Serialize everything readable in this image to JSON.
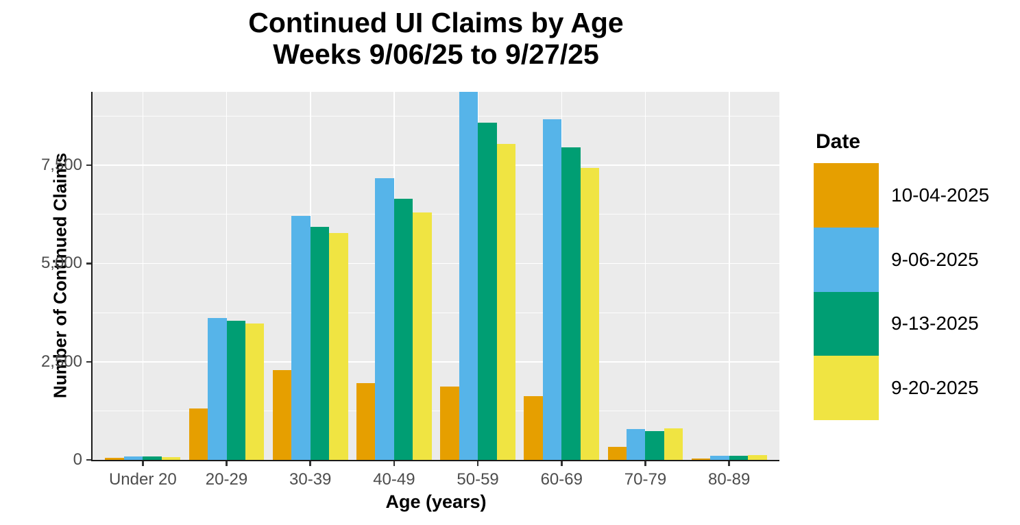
{
  "chart_data": {
    "type": "bar",
    "title": "Continued UI Claims by Age",
    "subtitle": "Weeks 9/06/25 to 9/27/25",
    "xlabel": "Age (years)",
    "ylabel": "Number of Continued Claims",
    "legend_title": "Date",
    "legend_position": "right",
    "categories": [
      "Under 20",
      "20-29",
      "30-39",
      "40-49",
      "50-59",
      "60-69",
      "70-79",
      "80-89"
    ],
    "series": [
      {
        "name": "10-04-2025",
        "color": "#E69F00",
        "values": [
          50,
          1310,
          2290,
          1950,
          1860,
          1620,
          330,
          40
        ]
      },
      {
        "name": "9-06-2025",
        "color": "#56B4E9",
        "values": [
          90,
          3620,
          6210,
          7180,
          9370,
          8670,
          780,
          110
        ]
      },
      {
        "name": "9-13-2025",
        "color": "#009E73",
        "values": [
          90,
          3540,
          5930,
          6650,
          8580,
          7950,
          730,
          110
        ]
      },
      {
        "name": "9-20-2025",
        "color": "#F0E442",
        "values": [
          70,
          3470,
          5770,
          6300,
          8040,
          7430,
          800,
          130
        ]
      }
    ],
    "y_ticks": [
      {
        "value": 0,
        "label": "0"
      },
      {
        "value": 2500,
        "label": "2,500"
      },
      {
        "value": 5000,
        "label": "5,000"
      },
      {
        "value": 7500,
        "label": "7,500"
      }
    ],
    "y_minor_breaks": [
      1250,
      3750,
      6250,
      8750
    ],
    "ylim": [
      0,
      9370
    ],
    "grid": true,
    "panel_bg": "#EBEBEB",
    "grid_color": "#FFFFFF",
    "axis_text_color": "#4D4D4D",
    "axis_line_color": "#1A1A1A"
  }
}
